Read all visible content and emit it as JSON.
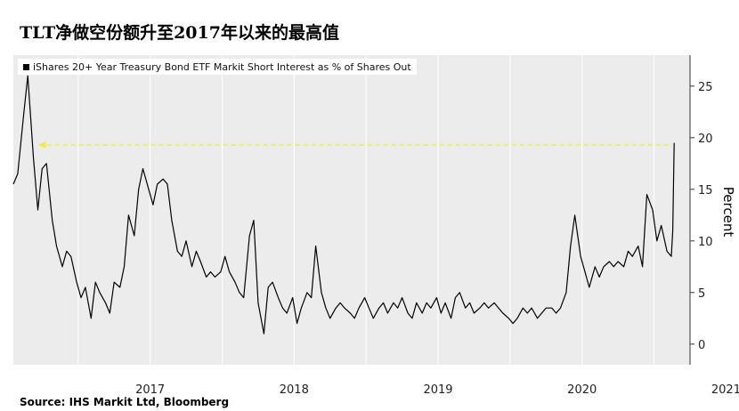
{
  "header": {
    "title": "TLT净做空份额升至2017年以来的最高值"
  },
  "footer": {
    "source": "Source: IHS Markit Ltd, Bloomberg"
  },
  "chart_data": {
    "type": "line",
    "title": "TLT净做空份额升至2017年以来的最高值",
    "ylabel": "Percent",
    "xlabel": "",
    "ylim": [
      -2,
      28
    ],
    "yticks": [
      0,
      5,
      10,
      15,
      20,
      25
    ],
    "xlim": [
      2016.55,
      2021.25
    ],
    "xticks": [
      {
        "label": "2017",
        "value": 2017.0
      },
      {
        "label": "2018",
        "value": 2018.0
      },
      {
        "label": "2019",
        "value": 2019.0
      },
      {
        "label": "2020",
        "value": 2020.0
      },
      {
        "label": "2021",
        "value": 2021.0
      }
    ],
    "grid": true,
    "legend_position": "top-left",
    "series": [
      {
        "name": "iShares 20+ Year Treasury Bond ETF Markit Short Interest as % of Shares Out",
        "color": "#000000",
        "x": [
          2016.55,
          2016.58,
          2016.62,
          2016.65,
          2016.69,
          2016.72,
          2016.75,
          2016.78,
          2016.82,
          2016.85,
          2016.89,
          2016.92,
          2016.95,
          2016.99,
          2017.02,
          2017.05,
          2017.09,
          2017.12,
          2017.15,
          2017.19,
          2017.22,
          2017.25,
          2017.29,
          2017.32,
          2017.35,
          2017.39,
          2017.42,
          2017.45,
          2017.49,
          2017.52,
          2017.55,
          2017.59,
          2017.62,
          2017.65,
          2017.69,
          2017.72,
          2017.75,
          2017.79,
          2017.82,
          2017.85,
          2017.89,
          2017.92,
          2017.95,
          2017.99,
          2018.02,
          2018.05,
          2018.09,
          2018.12,
          2018.15,
          2018.19,
          2018.22,
          2018.25,
          2018.29,
          2018.32,
          2018.35,
          2018.39,
          2018.42,
          2018.45,
          2018.49,
          2018.52,
          2018.55,
          2018.59,
          2018.62,
          2018.65,
          2018.69,
          2018.72,
          2018.75,
          2018.79,
          2018.82,
          2018.85,
          2018.89,
          2018.92,
          2018.95,
          2018.99,
          2019.02,
          2019.05,
          2019.09,
          2019.12,
          2019.15,
          2019.19,
          2019.22,
          2019.25,
          2019.29,
          2019.32,
          2019.35,
          2019.39,
          2019.42,
          2019.45,
          2019.49,
          2019.52,
          2019.55,
          2019.59,
          2019.62,
          2019.65,
          2019.69,
          2019.72,
          2019.75,
          2019.79,
          2019.82,
          2019.85,
          2019.89,
          2019.92,
          2019.95,
          2019.99,
          2020.02,
          2020.05,
          2020.09,
          2020.12,
          2020.15,
          2020.19,
          2020.22,
          2020.25,
          2020.29,
          2020.32,
          2020.35,
          2020.39,
          2020.42,
          2020.45,
          2020.49,
          2020.52,
          2020.55,
          2020.59,
          2020.62,
          2020.65,
          2020.69,
          2020.72,
          2020.75,
          2020.79,
          2020.82,
          2020.85,
          2020.89,
          2020.92,
          2020.95,
          2020.99,
          2021.02,
          2021.05,
          2021.09,
          2021.12
        ],
        "values": [
          15.5,
          16.5,
          22.0,
          26.0,
          18.0,
          13.0,
          17.0,
          17.5,
          12.0,
          9.5,
          7.5,
          9.0,
          8.5,
          6.0,
          4.5,
          5.5,
          2.5,
          6.0,
          5.0,
          4.0,
          3.0,
          6.0,
          5.5,
          7.5,
          12.5,
          10.5,
          15.0,
          17.0,
          15.0,
          13.5,
          15.5,
          16.0,
          15.5,
          12.0,
          9.0,
          8.5,
          10.0,
          7.5,
          9.0,
          8.0,
          6.5,
          7.0,
          6.5,
          7.0,
          8.5,
          7.0,
          6.0,
          5.0,
          4.5,
          10.5,
          12.0,
          4.0,
          1.0,
          5.5,
          6.0,
          4.5,
          3.5,
          3.0,
          4.5,
          2.0,
          3.5,
          5.0,
          4.5,
          9.5,
          5.0,
          3.5,
          2.5,
          3.5,
          4.0,
          3.5,
          3.0,
          2.5,
          3.5,
          4.5,
          3.5,
          2.5,
          3.5,
          4.0,
          3.0,
          4.0,
          3.5,
          4.5,
          3.0,
          2.5,
          4.0,
          3.0,
          4.0,
          3.5,
          4.5,
          3.0,
          4.0,
          2.5,
          4.5,
          5.0,
          3.5,
          4.0,
          3.0,
          3.5,
          4.0,
          3.5,
          4.0,
          3.5,
          3.0,
          2.5,
          2.0,
          2.5,
          3.5,
          3.0,
          3.5,
          2.5,
          3.0,
          3.5,
          3.5,
          3.0,
          3.5,
          5.0,
          9.5,
          12.5,
          8.5,
          7.0,
          5.5,
          7.5,
          6.5,
          7.5,
          8.0,
          7.5,
          8.0,
          7.5,
          9.0,
          8.5,
          9.5,
          7.5,
          14.5,
          13.0,
          10.0,
          11.5,
          9.0,
          8.5
        ],
        "end_values": [
          11.0,
          19.5
        ]
      }
    ],
    "annotations": [
      {
        "type": "arrow",
        "from_x": 2021.1,
        "to_x": 2016.72,
        "y": 19.3,
        "color": "#f2e94e"
      }
    ]
  },
  "legend_label": "iShares 20+ Year Treasury Bond ETF Markit Short Interest as % of Shares Out"
}
